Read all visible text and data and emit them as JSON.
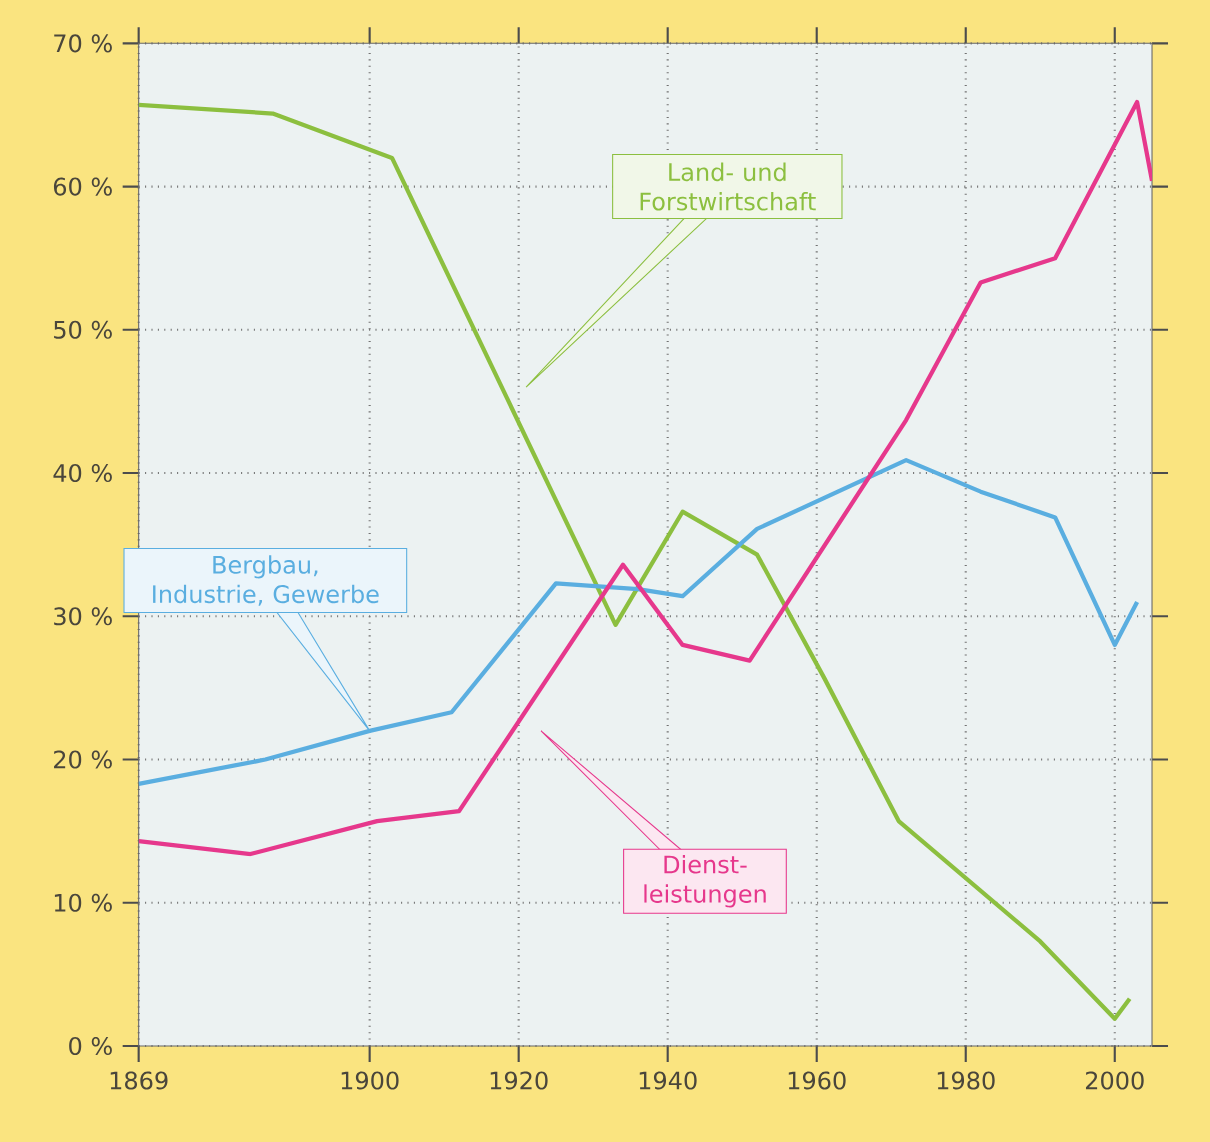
{
  "chart_data": {
    "type": "line",
    "xlim": [
      1869,
      2005
    ],
    "ylim": [
      0,
      70
    ],
    "xticks": [
      1869,
      1900,
      1920,
      1940,
      1960,
      1980,
      2000
    ],
    "yticks": [
      {
        "value": 0,
        "label": "0 %"
      },
      {
        "value": 10,
        "label": "10 %"
      },
      {
        "value": 20,
        "label": "20 %"
      },
      {
        "value": 30,
        "label": "30 %"
      },
      {
        "value": 40,
        "label": "40 %"
      },
      {
        "value": 50,
        "label": "50 %"
      },
      {
        "value": 60,
        "label": "60 %"
      },
      {
        "value": 70,
        "label": "70 %"
      }
    ],
    "grid": true,
    "legend": false,
    "marker": "none",
    "line_style": "solid",
    "series": [
      {
        "name": "Land- und Forstwirtschaft",
        "color": "#8cbf3f",
        "x": [
          1869,
          1887,
          1903,
          1933,
          1942,
          1952,
          1961,
          1971,
          1990,
          2000,
          2002
        ],
        "values": [
          65.7,
          65.1,
          62,
          29.4,
          37.3,
          34.3,
          25.7,
          15.7,
          7.3,
          1.9,
          3.3
        ]
      },
      {
        "name": "Bergbau, Industrie, Gewerbe",
        "color": "#5aaee0",
        "x": [
          1869,
          1886,
          1900,
          1911,
          1925,
          1936,
          1942,
          1952,
          1972,
          1982,
          1992,
          2000,
          2003
        ],
        "values": [
          18.3,
          20,
          22,
          23.3,
          32.3,
          31.9,
          31.4,
          36.1,
          40.9,
          38.7,
          36.9,
          28,
          31
        ]
      },
      {
        "name": "Dienst-leistungen",
        "color": "#e6388c",
        "x": [
          1869,
          1884,
          1901,
          1912,
          1934,
          1942,
          1951,
          1972,
          1982,
          1992,
          2003,
          2005
        ],
        "values": [
          14.3,
          13.4,
          15.7,
          16.4,
          33.6,
          28,
          26.9,
          43.7,
          53.3,
          55,
          65.9,
          60.4
        ]
      }
    ]
  }
}
